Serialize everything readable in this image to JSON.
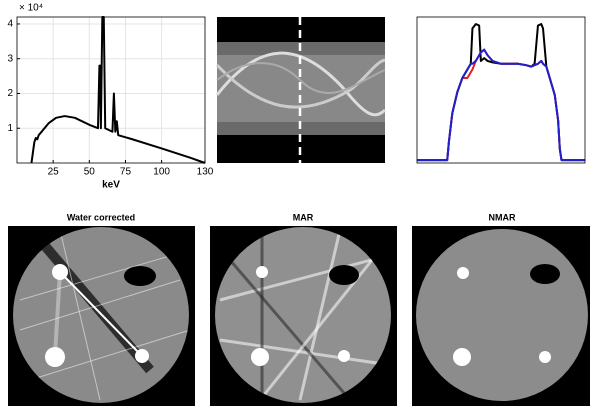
{
  "chart_data": [
    {
      "type": "line",
      "xlabel": "keV",
      "ylabel_scale": "× 10⁴",
      "color": "#000000",
      "grid": true,
      "x": [
        10,
        11,
        12,
        13,
        14,
        15,
        18,
        22,
        27,
        33,
        40,
        50,
        56,
        57,
        57.5,
        58,
        59,
        60,
        61,
        66,
        67,
        68,
        69,
        70,
        80,
        100,
        120,
        130
      ],
      "values": [
        0,
        0.3,
        0.6,
        0.72,
        0.68,
        0.8,
        0.95,
        1.15,
        1.3,
        1.35,
        1.3,
        1.1,
        1.0,
        2.8,
        2.8,
        1.0,
        4.2,
        4.2,
        1.0,
        0.9,
        2.0,
        0.9,
        1.2,
        0.8,
        0.68,
        0.42,
        0.15,
        0
      ],
      "xlim": [
        0,
        130
      ],
      "ylim": [
        0,
        4.2
      ],
      "xticks": [
        25,
        50,
        75,
        100,
        130
      ],
      "yticks": [
        1,
        2,
        3,
        4
      ]
    },
    {
      "type": "line",
      "xlim": [
        0,
        100
      ],
      "ylim": [
        0,
        1.03
      ],
      "x": [
        0,
        10,
        18,
        19,
        21,
        24,
        27,
        30,
        32,
        33,
        35,
        37,
        38,
        40,
        42,
        45,
        50,
        55,
        60,
        65,
        68,
        70,
        72,
        74,
        75,
        77,
        79,
        82,
        84,
        85,
        86,
        90,
        100
      ],
      "series": [
        {
          "color": "#000000",
          "values": [
            0.02,
            0.02,
            0.02,
            0.15,
            0.35,
            0.5,
            0.6,
            0.66,
            0.7,
            0.95,
            0.98,
            0.97,
            0.72,
            0.74,
            0.72,
            0.71,
            0.7,
            0.7,
            0.7,
            0.69,
            0.68,
            0.7,
            0.97,
            0.98,
            0.95,
            0.68,
            0.6,
            0.48,
            0.3,
            0.1,
            0.02,
            0.02,
            0.02
          ]
        },
        {
          "color": "#e02020",
          "values": [
            0.02,
            0.02,
            0.02,
            0.15,
            0.35,
            0.5,
            0.6,
            0.6,
            0.64,
            0.66,
            0.72,
            0.76,
            0.78,
            0.8,
            0.76,
            0.72,
            0.7,
            0.7,
            0.7,
            0.69,
            0.68,
            0.69,
            0.7,
            0.72,
            0.7,
            0.68,
            0.6,
            0.48,
            0.3,
            0.1,
            0.02,
            0.02,
            0.02
          ]
        },
        {
          "color": "#2020d0",
          "values": [
            0.02,
            0.02,
            0.02,
            0.15,
            0.35,
            0.5,
            0.6,
            0.66,
            0.7,
            0.7,
            0.72,
            0.76,
            0.78,
            0.8,
            0.76,
            0.72,
            0.7,
            0.7,
            0.7,
            0.69,
            0.68,
            0.69,
            0.7,
            0.72,
            0.7,
            0.68,
            0.6,
            0.48,
            0.3,
            0.1,
            0.02,
            0.02,
            0.02
          ]
        }
      ]
    }
  ],
  "images": [
    {
      "title": "Water corrected"
    },
    {
      "title": "MAR"
    },
    {
      "title": "NMAR"
    }
  ]
}
